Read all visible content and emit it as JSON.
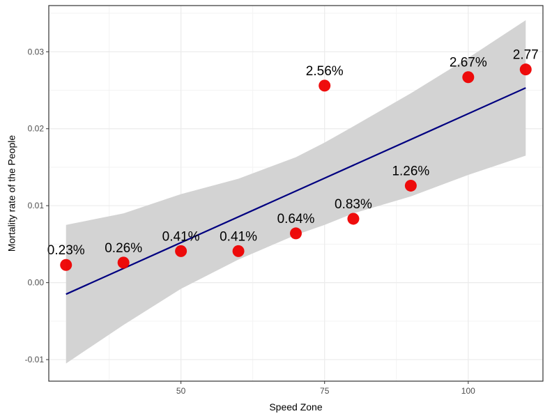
{
  "chart_data": {
    "type": "scatter",
    "title": "",
    "xlabel": "Speed Zone",
    "ylabel": "Mortality rate of the People",
    "xlim": [
      27,
      113
    ],
    "ylim": [
      -0.0128,
      0.036
    ],
    "x_ticks": [
      {
        "value": 50,
        "label": "50"
      },
      {
        "value": 75,
        "label": "75"
      },
      {
        "value": 100,
        "label": "100"
      }
    ],
    "x_minor_ticks": [
      37.5,
      62.5,
      87.5
    ],
    "y_ticks": [
      {
        "value": -0.01,
        "label": "-0.01"
      },
      {
        "value": 0.0,
        "label": "0.00"
      },
      {
        "value": 0.01,
        "label": "0.01"
      },
      {
        "value": 0.02,
        "label": "0.02"
      },
      {
        "value": 0.03,
        "label": "0.03"
      }
    ],
    "y_minor_ticks": [
      -0.005,
      0.005,
      0.015,
      0.025,
      0.035
    ],
    "grid": true,
    "points": [
      {
        "x": 30,
        "y": 0.0023,
        "label": "0.23%"
      },
      {
        "x": 40,
        "y": 0.0026,
        "label": "0.26%"
      },
      {
        "x": 50,
        "y": 0.0041,
        "label": "0.41%"
      },
      {
        "x": 60,
        "y": 0.0041,
        "label": "0.41%"
      },
      {
        "x": 70,
        "y": 0.0064,
        "label": "0.64%"
      },
      {
        "x": 75,
        "y": 0.0256,
        "label": "2.56%"
      },
      {
        "x": 80,
        "y": 0.0083,
        "label": "0.83%"
      },
      {
        "x": 90,
        "y": 0.0126,
        "label": "1.26%"
      },
      {
        "x": 100,
        "y": 0.0267,
        "label": "2.67%"
      },
      {
        "x": 110,
        "y": 0.0277,
        "label": "2.77"
      }
    ],
    "trend_line": {
      "x": [
        30,
        110
      ],
      "y": [
        -0.0015,
        0.0253
      ]
    },
    "confidence_band": {
      "x": [
        30,
        40,
        50,
        60,
        70,
        75,
        80,
        90,
        100,
        110
      ],
      "lower": [
        -0.0105,
        -0.0055,
        -0.0008,
        0.003,
        0.0062,
        0.0075,
        0.009,
        0.0112,
        0.014,
        0.0165
      ],
      "upper": [
        0.0075,
        0.009,
        0.0115,
        0.0135,
        0.0163,
        0.0182,
        0.0203,
        0.0246,
        0.0292,
        0.0341
      ]
    },
    "colors": {
      "point": "#ee0000",
      "trend_line": "#000080",
      "band": "#d3d3d3",
      "grid": "#ebebeb",
      "panel_border": "#333333"
    }
  }
}
